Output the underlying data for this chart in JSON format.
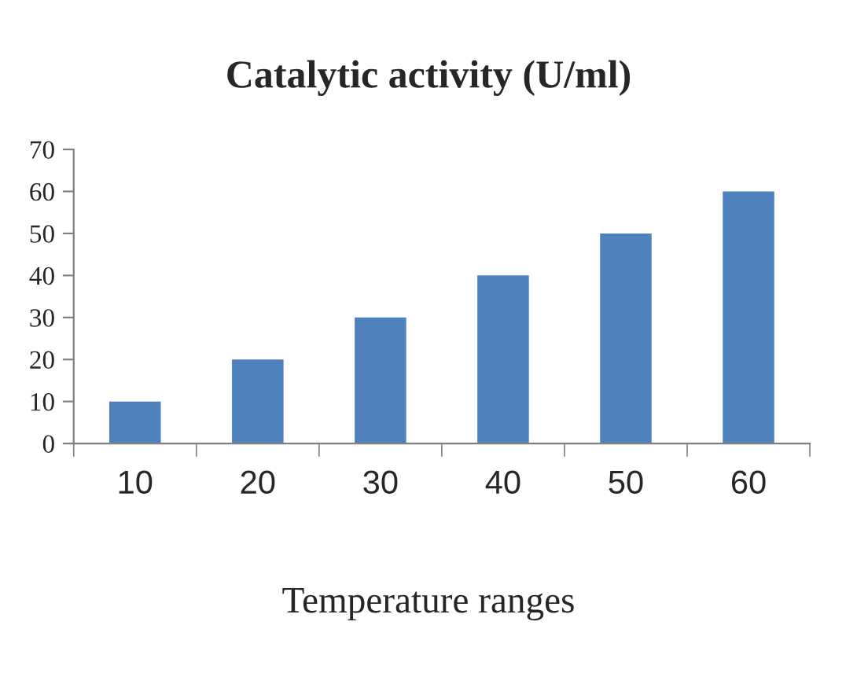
{
  "chart_data": {
    "type": "bar",
    "title": "Catalytic activity (U/ml)",
    "xlabel": "Temperature ranges",
    "categories": [
      "10",
      "20",
      "30",
      "40",
      "50",
      "60"
    ],
    "values": [
      10,
      20,
      30,
      40,
      50,
      60
    ],
    "color": "#4f81bd",
    "ylim": [
      0,
      70
    ],
    "yticks": [
      0,
      10,
      20,
      30,
      40,
      50,
      60,
      70
    ],
    "grid": false,
    "legend": false
  }
}
